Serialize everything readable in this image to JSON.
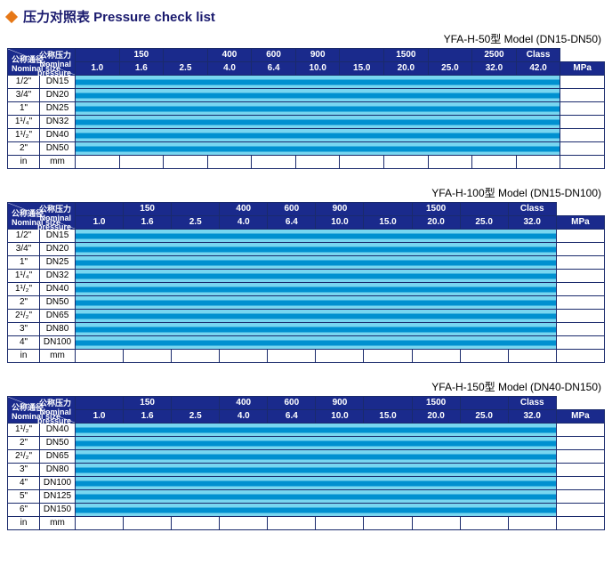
{
  "title": "压力对照表 Pressure check list",
  "colors": {
    "header_bg": "#1a2a8c",
    "header_fg": "#ffffff",
    "border": "#1a2a6c",
    "stripe_top": "#78d6f0",
    "stripe_mid": "#0090d0",
    "stripe_bot": "#78d6f0",
    "diamond": "#e67817"
  },
  "diag": {
    "pressure_cn": "公称压力",
    "pressure_en": "Nominal",
    "pressure_en2": "pressure",
    "size_cn": "公称通径",
    "size_en": "Nominal size"
  },
  "tables": [
    {
      "model": "YFA-H-50型  Model (DN15-DN50)",
      "class_row": [
        "",
        "150",
        "",
        "400",
        "600",
        "900",
        "",
        "1500",
        "",
        "2500",
        "Class"
      ],
      "mpa_row": [
        "1.0",
        "1.6",
        "2.5",
        "4.0",
        "6.4",
        "10.0",
        "15.0",
        "20.0",
        "25.0",
        "32.0",
        "42.0",
        "MPa"
      ],
      "sizes": [
        {
          "in": "1/2\"",
          "mm": "DN15"
        },
        {
          "in": "3/4\"",
          "mm": "DN20"
        },
        {
          "in": "1\"",
          "mm": "DN25"
        },
        {
          "in": "1¹/₄\"",
          "mm": "DN32"
        },
        {
          "in": "1¹/₂\"",
          "mm": "DN40"
        },
        {
          "in": "2\"",
          "mm": "DN50"
        }
      ],
      "footer": {
        "in": "in",
        "mm": "mm"
      },
      "stripe_span": 11,
      "empty_tail": 1
    },
    {
      "model": "YFA-H-100型  Model (DN15-DN100)",
      "class_row": [
        "",
        "150",
        "",
        "400",
        "600",
        "900",
        "",
        "1500",
        "",
        "Class"
      ],
      "mpa_row": [
        "1.0",
        "1.6",
        "2.5",
        "4.0",
        "6.4",
        "10.0",
        "15.0",
        "20.0",
        "25.0",
        "32.0",
        "MPa"
      ],
      "sizes": [
        {
          "in": "1/2\"",
          "mm": "DN15"
        },
        {
          "in": "3/4\"",
          "mm": "DN20"
        },
        {
          "in": "1\"",
          "mm": "DN25"
        },
        {
          "in": "1¹/₄\"",
          "mm": "DN32"
        },
        {
          "in": "1¹/₂\"",
          "mm": "DN40"
        },
        {
          "in": "2\"",
          "mm": "DN50"
        },
        {
          "in": "2¹/₂\"",
          "mm": "DN65"
        },
        {
          "in": "3\"",
          "mm": "DN80"
        },
        {
          "in": "4\"",
          "mm": "DN100"
        }
      ],
      "footer": {
        "in": "in",
        "mm": "mm"
      },
      "stripe_span": 10,
      "empty_tail": 1
    },
    {
      "model": "YFA-H-150型  Model (DN40-DN150)",
      "class_row": [
        "",
        "150",
        "",
        "400",
        "600",
        "900",
        "",
        "1500",
        "",
        "Class"
      ],
      "mpa_row": [
        "1.0",
        "1.6",
        "2.5",
        "4.0",
        "6.4",
        "10.0",
        "15.0",
        "20.0",
        "25.0",
        "32.0",
        "MPa"
      ],
      "sizes": [
        {
          "in": "1¹/₂\"",
          "mm": "DN40"
        },
        {
          "in": "2\"",
          "mm": "DN50"
        },
        {
          "in": "2¹/₂\"",
          "mm": "DN65"
        },
        {
          "in": "3\"",
          "mm": "DN80"
        },
        {
          "in": "4\"",
          "mm": "DN100"
        },
        {
          "in": "5\"",
          "mm": "DN125"
        },
        {
          "in": "6\"",
          "mm": "DN150"
        }
      ],
      "footer": {
        "in": "in",
        "mm": "mm"
      },
      "stripe_span": 10,
      "empty_tail": 1
    }
  ]
}
